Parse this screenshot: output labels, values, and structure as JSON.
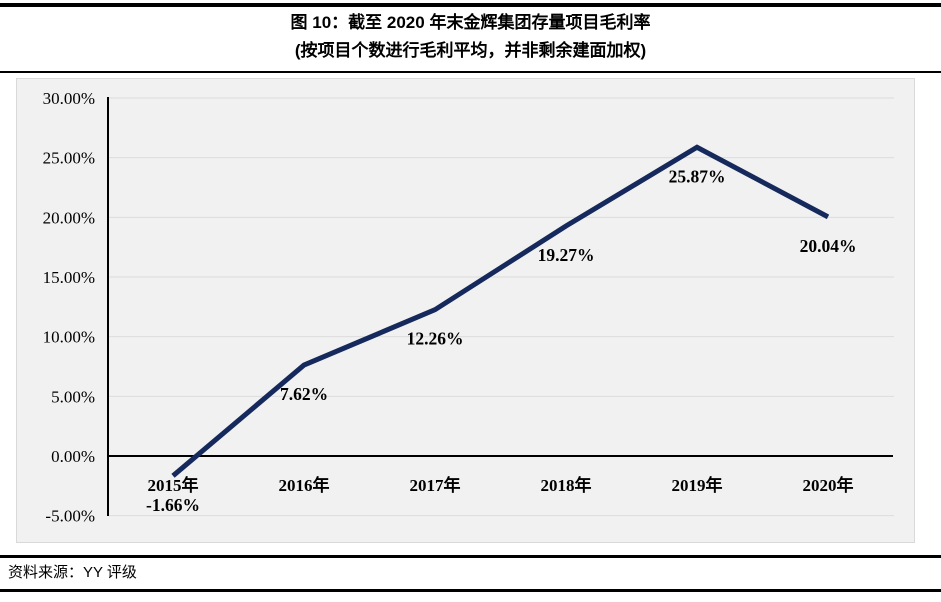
{
  "header": {
    "title_line1": "图 10：截至 2020 年末金辉集团存量项目毛利率",
    "title_line2": "(按项目个数进行毛利平均，并非剩余建面加权)"
  },
  "footer": {
    "source": "资料来源：YY 评级"
  },
  "chart_data": {
    "type": "line",
    "title": "截至 2020 年末金辉集团存量项目毛利率",
    "subtitle": "(按项目个数进行毛利平均，并非剩余建面加权)",
    "categories": [
      "2015年",
      "2016年",
      "2017年",
      "2018年",
      "2019年",
      "2020年"
    ],
    "values": [
      -1.66,
      7.62,
      12.26,
      19.27,
      25.87,
      20.04
    ],
    "data_labels": [
      "-1.66%",
      "7.62%",
      "12.26%",
      "19.27%",
      "25.87%",
      "20.04%"
    ],
    "y_ticks": [
      "30.00%",
      "25.00%",
      "20.00%",
      "15.00%",
      "10.00%",
      "5.00%",
      "0.00%",
      "-5.00%"
    ],
    "y_tick_values": [
      30,
      25,
      20,
      15,
      10,
      5,
      0,
      -5
    ],
    "ylim": [
      -5,
      30
    ],
    "xlabel": "",
    "ylabel": "",
    "grid": true,
    "legend": "none",
    "colors": {
      "line": "#16295c",
      "plot_background": "#f1f1f1",
      "gridline": "#dcdcdc",
      "axis": "#000000"
    }
  }
}
